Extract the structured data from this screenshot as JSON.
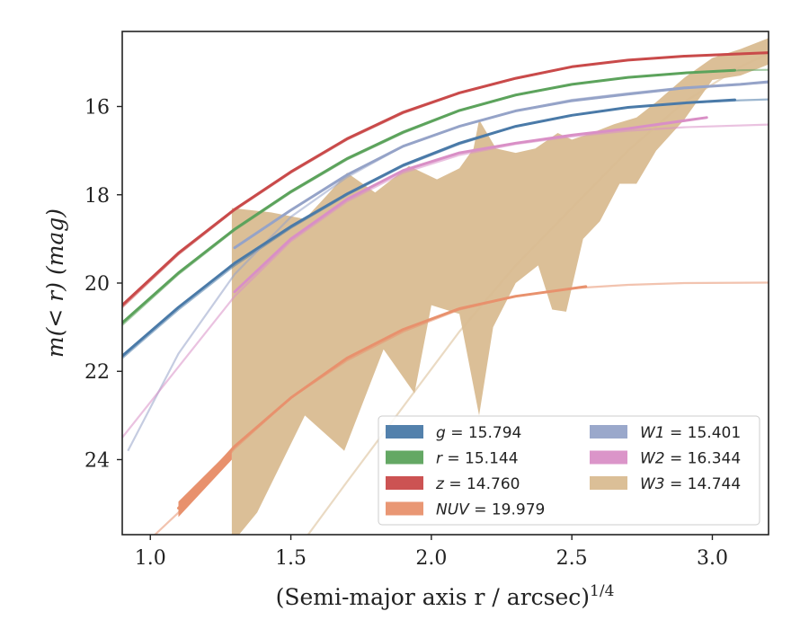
{
  "chart_data": {
    "type": "line",
    "title": "",
    "xlabel": "(Semi-major axis r / arcsec)",
    "xlabel_sup": "1/4",
    "ylabel": "m(< r) (mag)",
    "xlim": [
      0.9,
      3.2
    ],
    "ylim": [
      25.7,
      14.3
    ],
    "y_inverted": true,
    "grid": false,
    "legend_position": "lower-right",
    "xticks": [
      1.0,
      1.5,
      2.0,
      2.5,
      3.0
    ],
    "xtick_labels": [
      "1.0",
      "1.5",
      "2.0",
      "2.5",
      "3.0"
    ],
    "yticks": [
      16,
      18,
      20,
      22,
      24
    ],
    "ytick_labels": [
      "16",
      "18",
      "20",
      "22",
      "24"
    ],
    "series": [
      {
        "key": "g",
        "name": "g = 15.794",
        "color": "#4a7aa8",
        "model": [
          [
            0.9,
            21.7
          ],
          [
            1.1,
            20.6
          ],
          [
            1.3,
            19.6
          ],
          [
            1.5,
            18.75
          ],
          [
            1.7,
            18.0
          ],
          [
            1.9,
            17.35
          ],
          [
            2.1,
            16.85
          ],
          [
            2.3,
            16.45
          ],
          [
            2.5,
            16.2
          ],
          [
            2.7,
            16.02
          ],
          [
            2.9,
            15.92
          ],
          [
            3.1,
            15.86
          ],
          [
            3.2,
            15.84
          ]
        ],
        "data": [
          [
            0.9,
            21.65
          ],
          [
            1.1,
            20.55
          ],
          [
            1.3,
            19.55
          ],
          [
            1.5,
            18.72
          ],
          [
            1.7,
            17.98
          ],
          [
            1.9,
            17.33
          ],
          [
            2.1,
            16.83
          ],
          [
            2.3,
            16.45
          ],
          [
            2.5,
            16.2
          ],
          [
            2.7,
            16.02
          ],
          [
            2.9,
            15.92
          ],
          [
            3.08,
            15.85
          ]
        ]
      },
      {
        "key": "r",
        "name": "r = 15.144",
        "color": "#5ca35c",
        "model": [
          [
            0.9,
            20.95
          ],
          [
            1.1,
            19.8
          ],
          [
            1.3,
            18.8
          ],
          [
            1.5,
            17.95
          ],
          [
            1.7,
            17.2
          ],
          [
            1.9,
            16.6
          ],
          [
            2.1,
            16.1
          ],
          [
            2.3,
            15.75
          ],
          [
            2.5,
            15.5
          ],
          [
            2.7,
            15.34
          ],
          [
            2.9,
            15.24
          ],
          [
            3.1,
            15.18
          ],
          [
            3.2,
            15.17
          ]
        ],
        "data": [
          [
            0.9,
            20.9
          ],
          [
            1.1,
            19.77
          ],
          [
            1.3,
            18.78
          ],
          [
            1.5,
            17.93
          ],
          [
            1.7,
            17.18
          ],
          [
            1.9,
            16.58
          ],
          [
            2.1,
            16.09
          ],
          [
            2.3,
            15.74
          ],
          [
            2.5,
            15.5
          ],
          [
            2.7,
            15.34
          ],
          [
            2.9,
            15.24
          ],
          [
            3.08,
            15.18
          ]
        ]
      },
      {
        "key": "z",
        "name": "z = 14.760",
        "color": "#c94a4a",
        "model": [
          [
            0.9,
            20.55
          ],
          [
            1.1,
            19.35
          ],
          [
            1.3,
            18.35
          ],
          [
            1.5,
            17.5
          ],
          [
            1.7,
            16.75
          ],
          [
            1.9,
            16.15
          ],
          [
            2.1,
            15.7
          ],
          [
            2.3,
            15.37
          ],
          [
            2.5,
            15.1
          ],
          [
            2.7,
            14.95
          ],
          [
            2.9,
            14.86
          ],
          [
            3.1,
            14.8
          ],
          [
            3.2,
            14.79
          ]
        ],
        "data": [
          [
            0.9,
            20.5
          ],
          [
            1.1,
            19.32
          ],
          [
            1.3,
            18.33
          ],
          [
            1.5,
            17.48
          ],
          [
            1.7,
            16.73
          ],
          [
            1.9,
            16.13
          ],
          [
            2.1,
            15.69
          ],
          [
            2.3,
            15.36
          ],
          [
            2.5,
            15.1
          ],
          [
            2.7,
            14.95
          ],
          [
            2.9,
            14.86
          ],
          [
            3.2,
            14.78
          ]
        ]
      },
      {
        "key": "NUV",
        "name": "NUV = 19.979",
        "color": "#e8916d",
        "model": [
          [
            1.0,
            25.8
          ],
          [
            1.1,
            25.2
          ],
          [
            1.3,
            23.75
          ],
          [
            1.5,
            22.6
          ],
          [
            1.7,
            21.75
          ],
          [
            1.9,
            21.1
          ],
          [
            2.1,
            20.6
          ],
          [
            2.3,
            20.3
          ],
          [
            2.5,
            20.12
          ],
          [
            2.7,
            20.04
          ],
          [
            2.9,
            20.0
          ],
          [
            3.2,
            19.99
          ]
        ],
        "data": [
          [
            1.1,
            25.1
          ],
          [
            1.3,
            23.7
          ],
          [
            1.5,
            22.6
          ],
          [
            1.7,
            21.7
          ],
          [
            1.9,
            21.05
          ],
          [
            2.1,
            20.58
          ],
          [
            2.3,
            20.3
          ],
          [
            2.55,
            20.08
          ]
        ]
      },
      {
        "key": "W1",
        "name": "W1 = 15.401",
        "color": "#95a3c8",
        "model": [
          [
            0.92,
            23.8
          ],
          [
            1.1,
            21.6
          ],
          [
            1.3,
            19.8
          ],
          [
            1.5,
            18.5
          ],
          [
            1.7,
            17.6
          ],
          [
            1.9,
            16.9
          ],
          [
            2.1,
            16.45
          ],
          [
            2.3,
            16.1
          ],
          [
            2.5,
            15.85
          ],
          [
            2.7,
            15.7
          ],
          [
            2.9,
            15.57
          ],
          [
            3.1,
            15.49
          ],
          [
            3.2,
            15.46
          ]
        ],
        "data": [
          [
            1.3,
            19.2
          ],
          [
            1.5,
            18.35
          ],
          [
            1.7,
            17.55
          ],
          [
            1.9,
            16.9
          ],
          [
            2.1,
            16.45
          ],
          [
            2.3,
            16.1
          ],
          [
            2.5,
            15.87
          ],
          [
            2.7,
            15.72
          ],
          [
            2.9,
            15.58
          ],
          [
            3.1,
            15.5
          ],
          [
            3.2,
            15.44
          ]
        ]
      },
      {
        "key": "W2",
        "name": "W2 = 16.344",
        "color": "#d98fc6",
        "model": [
          [
            0.9,
            23.5
          ],
          [
            1.1,
            21.9
          ],
          [
            1.3,
            20.3
          ],
          [
            1.5,
            19.05
          ],
          [
            1.7,
            18.15
          ],
          [
            1.9,
            17.5
          ],
          [
            2.1,
            17.1
          ],
          [
            2.3,
            16.85
          ],
          [
            2.5,
            16.68
          ],
          [
            2.7,
            16.55
          ],
          [
            2.9,
            16.47
          ],
          [
            3.2,
            16.41
          ]
        ],
        "data": [
          [
            1.3,
            20.2
          ],
          [
            1.5,
            19.0
          ],
          [
            1.7,
            18.1
          ],
          [
            1.9,
            17.45
          ],
          [
            2.1,
            17.05
          ],
          [
            2.3,
            16.83
          ],
          [
            2.5,
            16.65
          ],
          [
            2.7,
            16.5
          ],
          [
            2.98,
            16.25
          ]
        ]
      },
      {
        "key": "W3",
        "name": "W3 = 14.744",
        "color": "#d9bc91",
        "model": [
          [
            1.55,
            25.8
          ],
          [
            1.7,
            24.5
          ],
          [
            1.9,
            22.8
          ],
          [
            2.1,
            21.1
          ],
          [
            2.3,
            19.6
          ],
          [
            2.5,
            18.3
          ],
          [
            2.7,
            17.0
          ],
          [
            2.9,
            15.9
          ],
          [
            3.1,
            15.1
          ],
          [
            3.2,
            14.8
          ]
        ],
        "band_upper": [
          [
            1.29,
            18.3
          ],
          [
            1.43,
            18.4
          ],
          [
            1.55,
            18.55
          ],
          [
            1.63,
            18.0
          ],
          [
            1.7,
            17.5
          ],
          [
            1.8,
            17.95
          ],
          [
            1.92,
            17.35
          ],
          [
            2.02,
            17.65
          ],
          [
            2.1,
            17.4
          ],
          [
            2.15,
            16.95
          ],
          [
            2.17,
            16.3
          ],
          [
            2.23,
            16.95
          ],
          [
            2.3,
            17.05
          ],
          [
            2.37,
            16.95
          ],
          [
            2.45,
            16.6
          ],
          [
            2.5,
            16.75
          ],
          [
            2.57,
            16.6
          ],
          [
            2.65,
            16.4
          ],
          [
            2.73,
            16.25
          ],
          [
            2.8,
            15.9
          ],
          [
            2.9,
            15.35
          ],
          [
            3.0,
            14.9
          ],
          [
            3.1,
            14.7
          ],
          [
            3.2,
            14.45
          ]
        ],
        "band_lower": [
          [
            1.29,
            25.9
          ],
          [
            1.38,
            25.2
          ],
          [
            1.55,
            23.0
          ],
          [
            1.69,
            23.8
          ],
          [
            1.83,
            21.5
          ],
          [
            1.94,
            22.5
          ],
          [
            2.0,
            20.5
          ],
          [
            2.1,
            20.7
          ],
          [
            2.17,
            23.0
          ],
          [
            2.22,
            21.0
          ],
          [
            2.3,
            20.0
          ],
          [
            2.38,
            19.6
          ],
          [
            2.43,
            20.6
          ],
          [
            2.48,
            20.65
          ],
          [
            2.54,
            19.0
          ],
          [
            2.6,
            18.6
          ],
          [
            2.67,
            17.75
          ],
          [
            2.73,
            17.75
          ],
          [
            2.8,
            17.0
          ],
          [
            2.9,
            16.3
          ],
          [
            3.0,
            15.4
          ],
          [
            3.1,
            15.3
          ],
          [
            3.2,
            15.05
          ]
        ]
      }
    ],
    "legend": {
      "col1": [
        {
          "key": "g",
          "label_var": "g",
          "label_val": " = 15.794",
          "color": "#4a7aa8"
        },
        {
          "key": "r",
          "label_var": "r",
          "label_val": " = 15.144",
          "color": "#5ca35c"
        },
        {
          "key": "z",
          "label_var": "z",
          "label_val": " = 14.760",
          "color": "#c94a4a"
        },
        {
          "key": "NUV",
          "label_var": "NUV",
          "label_val": " = 19.979",
          "color": "#e8916d"
        }
      ],
      "col2": [
        {
          "key": "W1",
          "label_var": "W1",
          "label_val": " = 15.401",
          "color": "#95a3c8"
        },
        {
          "key": "W2",
          "label_var": "W2",
          "label_val": " = 16.344",
          "color": "#d98fc6"
        },
        {
          "key": "W3",
          "label_var": "W3",
          "label_val": " = 14.744",
          "color": "#d9bc91"
        }
      ]
    }
  }
}
